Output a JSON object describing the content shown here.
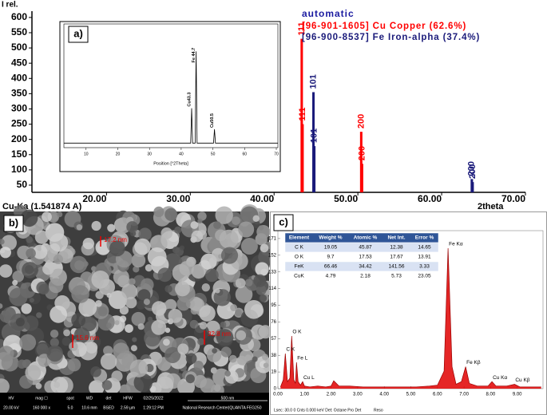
{
  "chart_data": [
    {
      "type": "stick",
      "ylabel": "I rel.",
      "xlabel": "2theta",
      "xlabel_left": "Cu-Ka (1.541874 A)",
      "legend_title": "automatic",
      "xlim": [
        11.1,
        70
      ],
      "ylim": [
        29,
        618
      ],
      "xticks": [
        {
          "value": 20,
          "label": "20.00"
        },
        {
          "value": 30,
          "label": "30.00"
        },
        {
          "value": 40,
          "label": "40.00"
        },
        {
          "value": 50,
          "label": "50.00"
        },
        {
          "value": 60,
          "label": "60.00"
        },
        {
          "value": 70,
          "label": "70.00"
        }
      ],
      "yticks": [
        50,
        100,
        150,
        200,
        250,
        300,
        350,
        400,
        450,
        500,
        550,
        600
      ],
      "series": [
        {
          "name": "[96-901-1605] Cu Copper (62.6%)",
          "color": "#ff0000",
          "x": [
            43.3,
            43.4,
            50.4,
            50.5
          ],
          "values": [
            530,
            250,
            225,
            120
          ],
          "labels": [
            "111",
            "111",
            "200",
            "200"
          ]
        },
        {
          "name": "[96-900-8537] Fe Iron-alpha (37.4%)",
          "color": "#1a1a7a",
          "x": [
            44.7,
            44.8,
            63.6,
            63.7
          ],
          "values": [
            355,
            178,
            70,
            60
          ],
          "labels": [
            "101",
            "101",
            "200",
            "200"
          ]
        }
      ]
    },
    {
      "type": "line",
      "title": "a)",
      "xlabel": "Position [°2Theta]",
      "xlim": [
        3,
        70.5
      ],
      "ylim": [
        -5,
        130
      ],
      "xticks": [
        10,
        20,
        30,
        40,
        50,
        60,
        70
      ],
      "color": "#000000",
      "x": [
        3,
        43.0,
        43.3,
        43.6,
        44.4,
        44.7,
        45.0,
        50.2,
        50.5,
        50.8,
        70.5
      ],
      "values": [
        0,
        0,
        38,
        0,
        0,
        100,
        0,
        0,
        15,
        0,
        0
      ],
      "peaks": [
        {
          "label": "Cu43.3",
          "x": 43.3
        },
        {
          "label": "Fe 44.7",
          "x": 44.7
        },
        {
          "label": "Cu50.5",
          "x": 50.5
        }
      ]
    },
    {
      "type": "area",
      "title": "c)",
      "xlim": [
        0,
        9.97
      ],
      "ylim": [
        0,
        180
      ],
      "color": "#e00000",
      "xticks": [
        {
          "value": 0,
          "label": "0.00"
        },
        {
          "value": 1,
          "label": "1.00"
        },
        {
          "value": 2,
          "label": "2.00"
        },
        {
          "value": 3,
          "label": "3.00"
        },
        {
          "value": 4,
          "label": "4.00"
        },
        {
          "value": 5,
          "label": "5.00"
        },
        {
          "value": 6,
          "label": "6.00"
        },
        {
          "value": 7,
          "label": "7.00"
        },
        {
          "value": 8,
          "label": "8.00"
        },
        {
          "value": 9,
          "label": "9.00"
        }
      ],
      "yticks": [
        0,
        19,
        38,
        57,
        76,
        95,
        114,
        133,
        152,
        171
      ],
      "x": [
        0.1,
        0.2,
        0.28,
        0.36,
        0.45,
        0.52,
        0.6,
        0.66,
        0.7,
        0.76,
        0.85,
        0.93,
        1.0,
        1.2,
        1.5,
        1.8,
        2.0,
        2.1,
        2.3,
        2.7,
        3.2,
        3.7,
        4.2,
        4.7,
        5.2,
        5.7,
        6.0,
        6.25,
        6.4,
        6.55,
        6.7,
        6.9,
        7.06,
        7.2,
        7.5,
        7.9,
        8.05,
        8.2,
        8.6,
        8.9,
        9.1,
        9.5,
        9.9
      ],
      "values": [
        2,
        10,
        40,
        8,
        12,
        60,
        10,
        6,
        30,
        8,
        4,
        8,
        3,
        2,
        3,
        2,
        3,
        9,
        3,
        3,
        2,
        2,
        2,
        2,
        2,
        3,
        4,
        20,
        160,
        25,
        5,
        8,
        25,
        6,
        3,
        3,
        8,
        3,
        3,
        5,
        2,
        2,
        2
      ],
      "peaks": [
        {
          "label": "C K",
          "x": 0.28
        },
        {
          "label": "O K",
          "x": 0.52
        },
        {
          "label": "Fe L",
          "x": 0.7
        },
        {
          "label": "Cu L",
          "x": 0.93
        },
        {
          "label": "Fe Kα",
          "x": 6.4
        },
        {
          "label": "Fe Kβ",
          "x": 7.06
        },
        {
          "label": "Cu Kα",
          "x": 8.05
        },
        {
          "label": "Cu Kβ",
          "x": 8.9
        }
      ],
      "table": {
        "header": [
          "Element",
          "Weight %",
          "Atomic %",
          "Net Int.",
          "Error %"
        ],
        "rows": [
          [
            "C K",
            "19.05",
            "45.87",
            "12.38",
            "14.65"
          ],
          [
            "O K",
            "9.7",
            "17.53",
            "17.67",
            "13.91"
          ],
          [
            "FeK",
            "66.46",
            "34.42",
            "141.56",
            "3.33"
          ],
          [
            "CuK",
            "4.79",
            "2.18",
            "5.73",
            "23.05"
          ]
        ]
      },
      "footer": [
        "Lsec: 30.0 0 Cnts 0.000 keV Det: Octane Pro Det",
        "Reso"
      ]
    }
  ],
  "sem": {
    "label": "b)",
    "measurements": [
      "17.2 nm",
      "15.6 nm",
      "32.8 nm"
    ],
    "info": {
      "header": [
        "HV",
        "mag ☐",
        "spot",
        "WD",
        "det",
        "HFW",
        "02/25/2022",
        "500 nm"
      ],
      "values": [
        "20.00 kV",
        "160 000 x",
        "5.0",
        "10.6 mm",
        "BSED",
        "2.59 µm",
        "1:29:12 PM",
        "National Research Center|QUANTA FEG250"
      ]
    }
  }
}
